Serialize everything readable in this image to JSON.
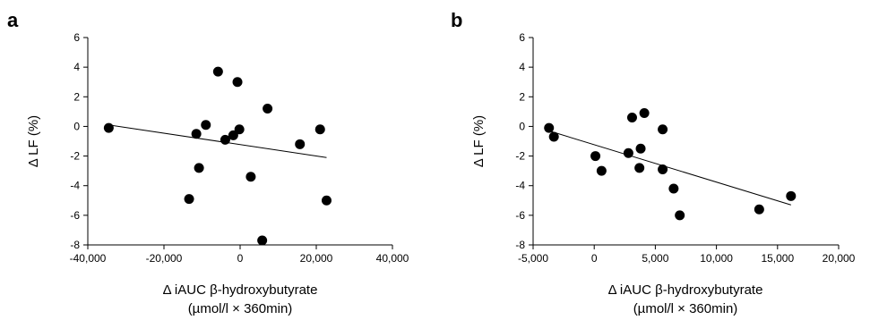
{
  "chart_data": [
    {
      "type": "scatter",
      "panel_label": "a",
      "title": "",
      "xlabel": "Δ iAUC β-hydroxybutyrate",
      "xlabel_units": "(µmol/l × 360min)",
      "ylabel": "Δ LF (%)",
      "xlim": [
        -40000,
        40000
      ],
      "ylim": [
        -8,
        6
      ],
      "x_ticks": [
        -40000,
        -20000,
        0,
        20000,
        40000
      ],
      "x_tick_labels": [
        "-40,000",
        "-20,000",
        "0",
        "20,000",
        "40,000"
      ],
      "y_ticks": [
        -8,
        -6,
        -4,
        -2,
        0,
        2,
        4,
        6
      ],
      "y_tick_labels": [
        "-8",
        "-6",
        "-4",
        "-2",
        "0",
        "2",
        "4",
        "6"
      ],
      "grid": false,
      "points": [
        {
          "x": -34500,
          "y": -0.1
        },
        {
          "x": -13400,
          "y": -4.9
        },
        {
          "x": -11500,
          "y": -0.5
        },
        {
          "x": -10800,
          "y": -2.8
        },
        {
          "x": -9000,
          "y": 0.1
        },
        {
          "x": -5800,
          "y": 3.7
        },
        {
          "x": -3900,
          "y": -0.9
        },
        {
          "x": -1800,
          "y": -0.6
        },
        {
          "x": -700,
          "y": 3.0
        },
        {
          "x": -200,
          "y": -0.2
        },
        {
          "x": 2800,
          "y": -3.4
        },
        {
          "x": 5800,
          "y": -7.7
        },
        {
          "x": 7200,
          "y": 1.2
        },
        {
          "x": 15700,
          "y": -1.2
        },
        {
          "x": 21000,
          "y": -0.2
        },
        {
          "x": 22700,
          "y": -5.0
        }
      ],
      "trendline": {
        "x": [
          -34500,
          22700
        ],
        "y": [
          0.1,
          -2.1
        ]
      }
    },
    {
      "type": "scatter",
      "panel_label": "b",
      "title": "",
      "xlabel": "Δ iAUC β-hydroxybutyrate",
      "xlabel_units": "(µmol/l × 360min)",
      "ylabel": "Δ LF (%)",
      "xlim": [
        -5000,
        20000
      ],
      "ylim": [
        -8,
        6
      ],
      "x_ticks": [
        -5000,
        0,
        5000,
        10000,
        15000,
        20000
      ],
      "x_tick_labels": [
        "-5,000",
        "0",
        "5,000",
        "10,000",
        "15,000",
        "20,000"
      ],
      "y_ticks": [
        -8,
        -6,
        -4,
        -2,
        0,
        2,
        4,
        6
      ],
      "y_tick_labels": [
        "-8",
        "-6",
        "-4",
        "-2",
        "0",
        "2",
        "4",
        "6"
      ],
      "grid": false,
      "points": [
        {
          "x": -3700,
          "y": -0.1
        },
        {
          "x": -3300,
          "y": -0.7
        },
        {
          "x": 100,
          "y": -2.0
        },
        {
          "x": 600,
          "y": -3.0
        },
        {
          "x": 2800,
          "y": -1.8
        },
        {
          "x": 3100,
          "y": 0.6
        },
        {
          "x": 3700,
          "y": -2.8
        },
        {
          "x": 3800,
          "y": -1.5
        },
        {
          "x": 4100,
          "y": 0.9
        },
        {
          "x": 5600,
          "y": -0.2
        },
        {
          "x": 5600,
          "y": -2.9
        },
        {
          "x": 6500,
          "y": -4.2
        },
        {
          "x": 7000,
          "y": -6.0
        },
        {
          "x": 13500,
          "y": -5.6
        },
        {
          "x": 16100,
          "y": -4.7
        }
      ],
      "trendline": {
        "x": [
          -3700,
          16100
        ],
        "y": [
          -0.3,
          -5.3
        ]
      }
    }
  ]
}
